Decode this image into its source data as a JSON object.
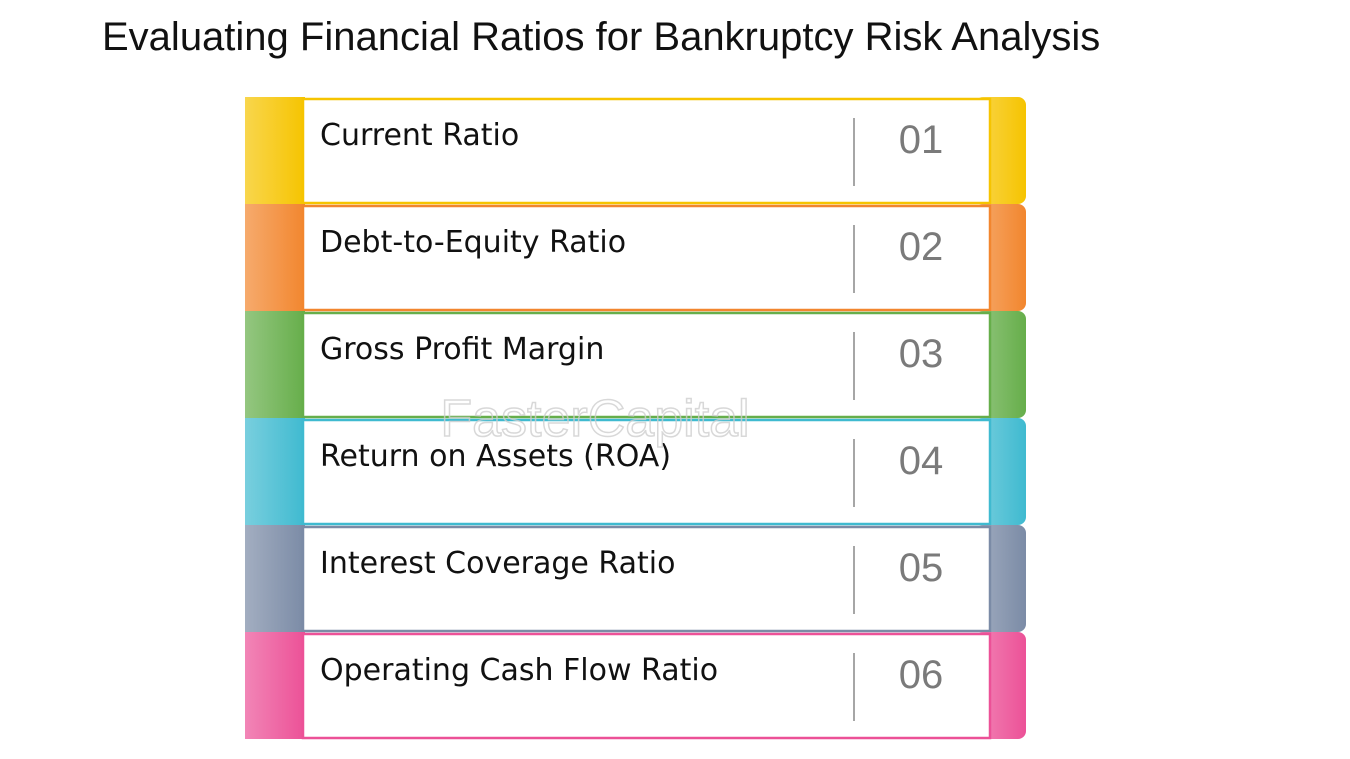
{
  "title": "Evaluating Financial Ratios for Bankruptcy Risk Analysis",
  "watermark": "FasterCapital",
  "items": [
    {
      "label": "Current Ratio",
      "number": "01",
      "color": "#f6c400"
    },
    {
      "label": "Debt-to-Equity Ratio",
      "number": "02",
      "color": "#f2862e"
    },
    {
      "label": "Gross Profit Margin",
      "number": "03",
      "color": "#66ae4a"
    },
    {
      "label": "Return on Assets (ROA)",
      "number": "04",
      "color": "#3fbad0"
    },
    {
      "label": "Interest Coverage Ratio",
      "number": "05",
      "color": "#7b8ba6"
    },
    {
      "label": "Operating Cash Flow Ratio",
      "number": "06",
      "color": "#ec5197"
    }
  ]
}
